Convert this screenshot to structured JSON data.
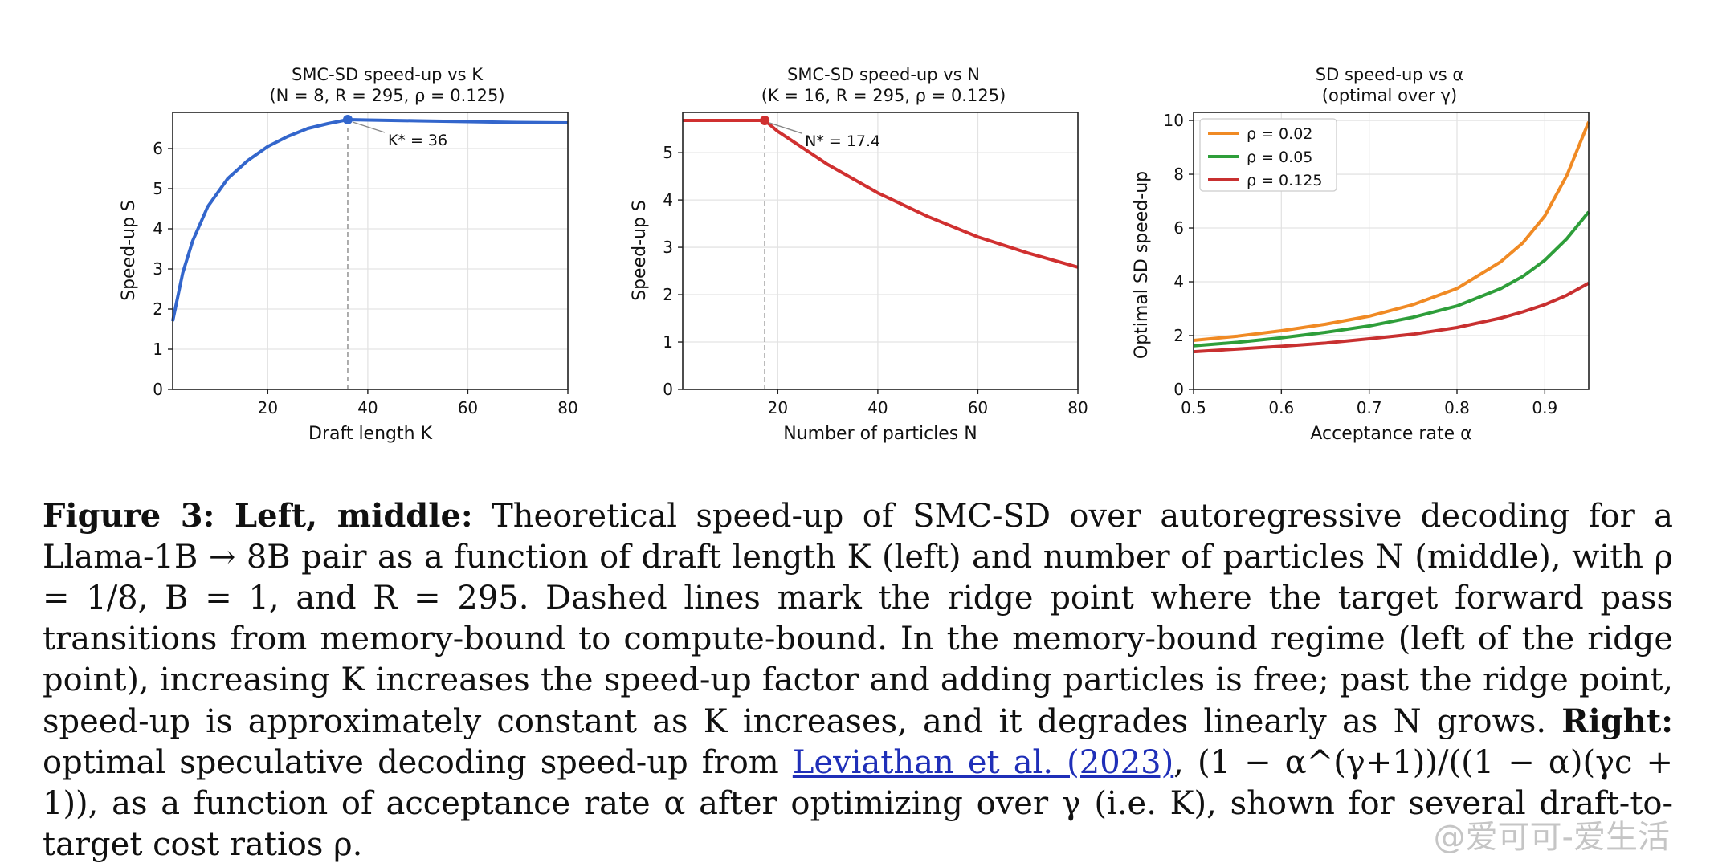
{
  "chart_data": [
    {
      "type": "line",
      "title": "SMC-SD speed-up vs K",
      "subtitle": "(N = 8, R = 295, ρ = 0.125)",
      "xlabel": "Draft length K",
      "ylabel": "Speed-up S",
      "xlim": [
        1,
        80
      ],
      "ylim": [
        0,
        6.9
      ],
      "xticks": [
        20,
        40,
        60,
        80
      ],
      "yticks": [
        0,
        1,
        2,
        3,
        4,
        5,
        6
      ],
      "color": "#3366cc",
      "series": [
        {
          "name": "speed-up",
          "x": [
            1,
            3,
            5,
            8,
            12,
            16,
            20,
            24,
            28,
            32,
            36,
            40,
            50,
            60,
            70,
            80
          ],
          "y": [
            1.7,
            2.9,
            3.7,
            4.55,
            5.25,
            5.7,
            6.05,
            6.3,
            6.5,
            6.62,
            6.72,
            6.71,
            6.69,
            6.67,
            6.65,
            6.64
          ]
        }
      ],
      "marker": {
        "x": 36,
        "y": 6.72,
        "label": "K* = 36"
      }
    },
    {
      "type": "line",
      "title": "SMC-SD speed-up vs N",
      "subtitle": "(K = 16, R = 295, ρ = 0.125)",
      "xlabel": "Number of particles N",
      "ylabel": "Speed-up S",
      "xlim": [
        1,
        80
      ],
      "ylim": [
        0,
        5.85
      ],
      "xticks": [
        20,
        40,
        60,
        80
      ],
      "yticks": [
        0,
        1,
        2,
        3,
        4,
        5
      ],
      "color": "#d03030",
      "series": [
        {
          "name": "speed-up",
          "x": [
            1,
            5,
            10,
            17.4,
            20,
            25,
            30,
            40,
            50,
            60,
            70,
            80
          ],
          "y": [
            5.68,
            5.68,
            5.68,
            5.68,
            5.45,
            5.1,
            4.75,
            4.15,
            3.65,
            3.22,
            2.88,
            2.58
          ]
        }
      ],
      "marker": {
        "x": 17.4,
        "y": 5.68,
        "label": "N* = 17.4"
      }
    },
    {
      "type": "line",
      "title": "SD speed-up vs α",
      "subtitle": "(optimal over γ)",
      "xlabel": "Acceptance rate α",
      "ylabel": "Optimal SD speed-up",
      "xlim": [
        0.5,
        0.95
      ],
      "ylim": [
        0,
        10.3
      ],
      "xticks": [
        0.5,
        0.6,
        0.7,
        0.8,
        0.9
      ],
      "yticks": [
        0,
        2,
        4,
        6,
        8,
        10
      ],
      "legend_position": "top-left",
      "x": [
        0.5,
        0.55,
        0.6,
        0.65,
        0.7,
        0.75,
        0.8,
        0.85,
        0.875,
        0.9,
        0.925,
        0.95
      ],
      "series": [
        {
          "name": "ρ = 0.02",
          "color": "#f08a24",
          "values": [
            1.82,
            1.98,
            2.18,
            2.42,
            2.72,
            3.15,
            3.75,
            4.75,
            5.45,
            6.45,
            7.95,
            9.95
          ]
        },
        {
          "name": "ρ = 0.05",
          "color": "#2e9e3a",
          "values": [
            1.62,
            1.75,
            1.92,
            2.12,
            2.36,
            2.68,
            3.1,
            3.75,
            4.2,
            4.8,
            5.6,
            6.6
          ]
        },
        {
          "name": "ρ = 0.125",
          "color": "#c83030",
          "values": [
            1.4,
            1.5,
            1.6,
            1.72,
            1.88,
            2.05,
            2.3,
            2.65,
            2.88,
            3.15,
            3.5,
            3.95
          ]
        }
      ]
    }
  ],
  "caption": {
    "p1": "Figure 3: Left, middle:",
    "p2": " Theoretical speed-up of SMC-SD over autoregressive decoding for a Llama-1B → 8B pair as a function of draft length K (left) and number of particles N (middle), with ρ = 1/8, B = 1, and R = 295. Dashed lines mark the ridge point where the target forward pass transitions from memory-bound to compute-bound. In the memory-bound regime (left of the ridge point), increasing K increases the speed-up factor and adding particles is free; past the ridge point, speed-up is approximately constant as K increases, and it degrades linearly as N grows. ",
    "p3": "Right:",
    "p4": " optimal speculative decoding speed-up from ",
    "link": "Leviathan et al. (2023)",
    "p5": ", (1 − α^(γ+1))/((1 − α)(γc + 1)), as a function of acceptance rate α after optimizing over γ (i.e. K), shown for several draft-to-target cost ratios ρ."
  },
  "watermark": "@爱可可-爱生活"
}
